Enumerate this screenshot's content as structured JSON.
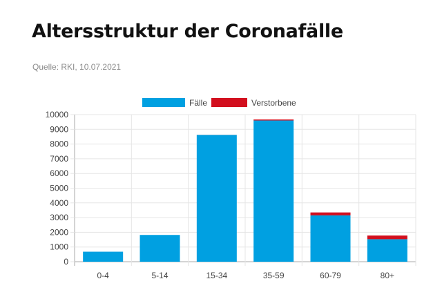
{
  "header": {
    "title": "Altersstruktur der Coronafälle",
    "source": "Quelle: RKI, 10.07.2021"
  },
  "colors": {
    "cases": "#00a0e1",
    "deaths": "#d20f1e",
    "grid": "#e5e5e5",
    "axis": "#aaaaaa"
  },
  "chart_data": {
    "type": "bar",
    "stacked": true,
    "categories": [
      "0-4",
      "5-14",
      "15-34",
      "35-59",
      "60-79",
      "80+"
    ],
    "series": [
      {
        "name": "Fälle",
        "values": [
          680,
          1820,
          8620,
          9600,
          3150,
          1530
        ]
      },
      {
        "name": "Verstorbene",
        "values": [
          0,
          0,
          5,
          70,
          200,
          250
        ]
      }
    ],
    "ylim": [
      0,
      10000
    ],
    "yticks": [
      0,
      1000,
      2000,
      3000,
      4000,
      5000,
      6000,
      7000,
      8000,
      9000,
      10000
    ],
    "grid": true,
    "legend_position": "top-center"
  }
}
